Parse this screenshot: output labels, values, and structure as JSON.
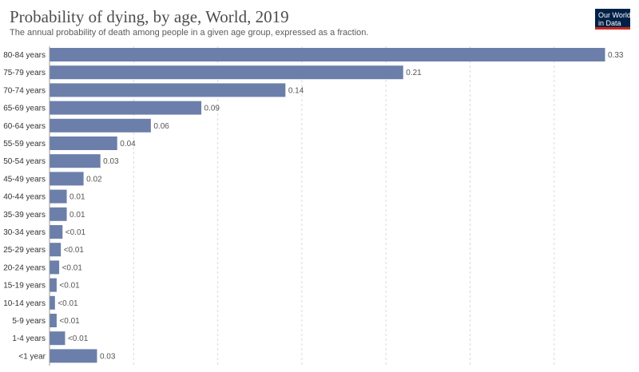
{
  "header": {
    "title": "Probability of dying, by age, World, 2019",
    "subtitle": "The annual probability of death among people in a given age group, expressed as a fraction."
  },
  "logo": {
    "line1": "Our World",
    "line2": "in Data"
  },
  "colors": {
    "bar": "#6b7faa",
    "grid": "#d9d9d9",
    "brand": "#002147",
    "brand_accent": "#ce261e"
  },
  "chart_data": {
    "type": "bar",
    "orientation": "horizontal",
    "categories": [
      "80-84 years",
      "75-79 years",
      "70-74 years",
      "65-69 years",
      "60-64 years",
      "55-59 years",
      "50-54 years",
      "45-49 years",
      "40-44 years",
      "35-39 years",
      "30-34 years",
      "25-29 years",
      "20-24 years",
      "15-19 years",
      "10-14 years",
      "5-9 years",
      "1-4 years",
      "<1 year"
    ],
    "values": [
      0.33,
      0.21,
      0.14,
      0.09,
      0.06,
      0.04,
      0.03,
      0.02,
      0.01,
      0.01,
      0.0075,
      0.0065,
      0.0055,
      0.004,
      0.003,
      0.004,
      0.009,
      0.028
    ],
    "value_labels": [
      "0.33",
      "0.21",
      "0.14",
      "0.09",
      "0.06",
      "0.04",
      "0.03",
      "0.02",
      "0.01",
      "0.01",
      "<0.01",
      "<0.01",
      "<0.01",
      "<0.01",
      "<0.01",
      "<0.01",
      "<0.01",
      "0.03"
    ],
    "xlim": [
      0,
      0.33
    ],
    "grid": true
  }
}
